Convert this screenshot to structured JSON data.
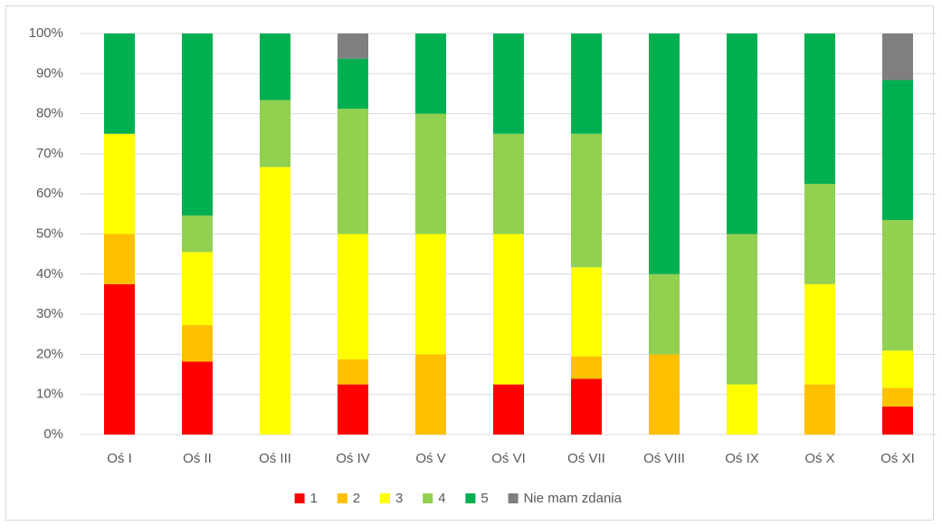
{
  "chart_data": {
    "type": "stacked_bar",
    "categories": [
      "Oś I",
      "Oś II",
      "Oś III",
      "Oś IV",
      "Oś V",
      "Oś VI",
      "Oś VII",
      "Oś VIII",
      "Oś IX",
      "Oś X",
      "Oś XI"
    ],
    "series": [
      {
        "name": "1",
        "color": "#ff0000",
        "values": [
          37.5,
          18.2,
          0,
          12.5,
          0,
          12.5,
          13.9,
          0,
          0,
          0,
          6.98
        ]
      },
      {
        "name": "2",
        "color": "#ffc000",
        "values": [
          12.5,
          9.1,
          0,
          6.25,
          20,
          0,
          5.6,
          20,
          0,
          12.5,
          4.65
        ]
      },
      {
        "name": "3",
        "color": "#ffff00",
        "values": [
          25,
          18.2,
          66.7,
          31.25,
          30,
          37.5,
          22.2,
          0,
          12.5,
          25,
          9.3
        ]
      },
      {
        "name": "4",
        "color": "#92d050",
        "values": [
          0,
          9.1,
          16.7,
          31.25,
          30,
          25,
          33.3,
          20,
          37.5,
          25,
          32.56
        ]
      },
      {
        "name": "5",
        "color": "#00b050",
        "values": [
          25,
          45.4,
          16.6,
          12.5,
          20,
          25,
          25,
          60,
          50,
          37.5,
          34.88
        ]
      },
      {
        "name": "Nie mam zdania",
        "color": "#7f7f7f",
        "values": [
          0,
          0,
          0,
          6.25,
          0,
          0,
          0,
          0,
          0,
          0,
          11.63
        ]
      }
    ],
    "ylim": [
      0,
      100
    ],
    "yticks": [
      {
        "value": 0,
        "label": "0%"
      },
      {
        "value": 10,
        "label": "10%"
      },
      {
        "value": 20,
        "label": "20%"
      },
      {
        "value": 30,
        "label": "30%"
      },
      {
        "value": 40,
        "label": "40%"
      },
      {
        "value": 50,
        "label": "50%"
      },
      {
        "value": 60,
        "label": "60%"
      },
      {
        "value": 70,
        "label": "70%"
      },
      {
        "value": 80,
        "label": "80%"
      },
      {
        "value": 90,
        "label": "90%"
      },
      {
        "value": 100,
        "label": "100%"
      }
    ],
    "grid": true,
    "legend": "bottom"
  }
}
